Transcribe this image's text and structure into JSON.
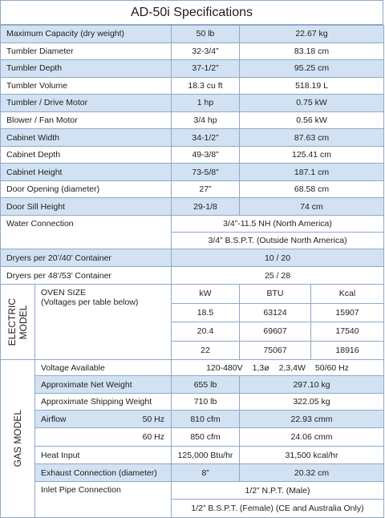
{
  "title": "AD-50i Specifications",
  "rows": [
    [
      "Maximum Capacity (dry weight)",
      "50 lb",
      "22.67 kg"
    ],
    [
      "Tumbler Diameter",
      "32-3/4”",
      "83.18 cm"
    ],
    [
      "Tumbler Depth",
      "37-1/2”",
      "95.25 cm"
    ],
    [
      "Tumbler Volume",
      "18.3 cu ft",
      "518.19 L"
    ],
    [
      "Tumbler / Drive Motor",
      "1 hp",
      "0.75 kW"
    ],
    [
      "Blower / Fan Motor",
      "3/4 hp",
      "0.56 kW"
    ],
    [
      "Cabinet Width",
      "34-1/2”",
      "87.63 cm"
    ],
    [
      "Cabinet Depth",
      "49-3/8”",
      "125.41 cm"
    ],
    [
      "Cabinet Height",
      "73-5/8”",
      "187.1 cm"
    ],
    [
      "Door Opening (diameter)",
      "27”",
      "68.58 cm"
    ],
    [
      "Door Sill Height",
      "29-1/8",
      "74 cm"
    ]
  ],
  "water": {
    "label": "Water Connection",
    "values": [
      "3/4”-11.5 NH (North America)",
      "3/4” B.S.P.T. (Outside North America)"
    ]
  },
  "containers": [
    [
      "Dryers per 20’/40’ Container",
      "10 / 20"
    ],
    [
      "Dryers per 48’/53’ Container",
      "25 / 28"
    ]
  ],
  "electric": {
    "section": [
      "ELECTRIC",
      "MODEL"
    ],
    "label": "OVEN SIZE",
    "note": "(Voltages per table below)",
    "header": [
      "kW",
      "BTU",
      "Kcal"
    ],
    "rows": [
      [
        "18.5",
        "63124",
        "15907"
      ],
      [
        "20.4",
        "69607",
        "17540"
      ],
      [
        "22",
        "75067",
        "18916"
      ]
    ]
  },
  "gas": {
    "section": "GAS MODEL",
    "voltage": {
      "label": "Voltage Available",
      "values": [
        "120-480V",
        "1,3ø",
        "2,3,4W",
        "50/60 Hz"
      ]
    },
    "weights": [
      [
        "Approximate Net Weight",
        "655 lb",
        "297.10 kg"
      ],
      [
        "Approximate Shipping Weight",
        "710 lb",
        "322.05 kg"
      ]
    ],
    "airflow": {
      "label": "Airflow",
      "rows": [
        [
          "50 Hz",
          "810 cfm",
          "22.93 cmm"
        ],
        [
          "60 Hz",
          "850 cfm",
          "24.06 cmm"
        ]
      ]
    },
    "other": [
      [
        "Heat Input",
        "125,000 Btu/hr",
        "31,500 kcal/hr"
      ],
      [
        "Exhaust Connection (diameter)",
        "8”",
        "20.32 cm"
      ]
    ],
    "inlet": {
      "label": "Inlet Pipe Connection",
      "values": [
        "1/2” N.P.T. (Male)",
        "1/2” B.S.P.T. (Female) (CE and Australia Only)"
      ]
    }
  }
}
